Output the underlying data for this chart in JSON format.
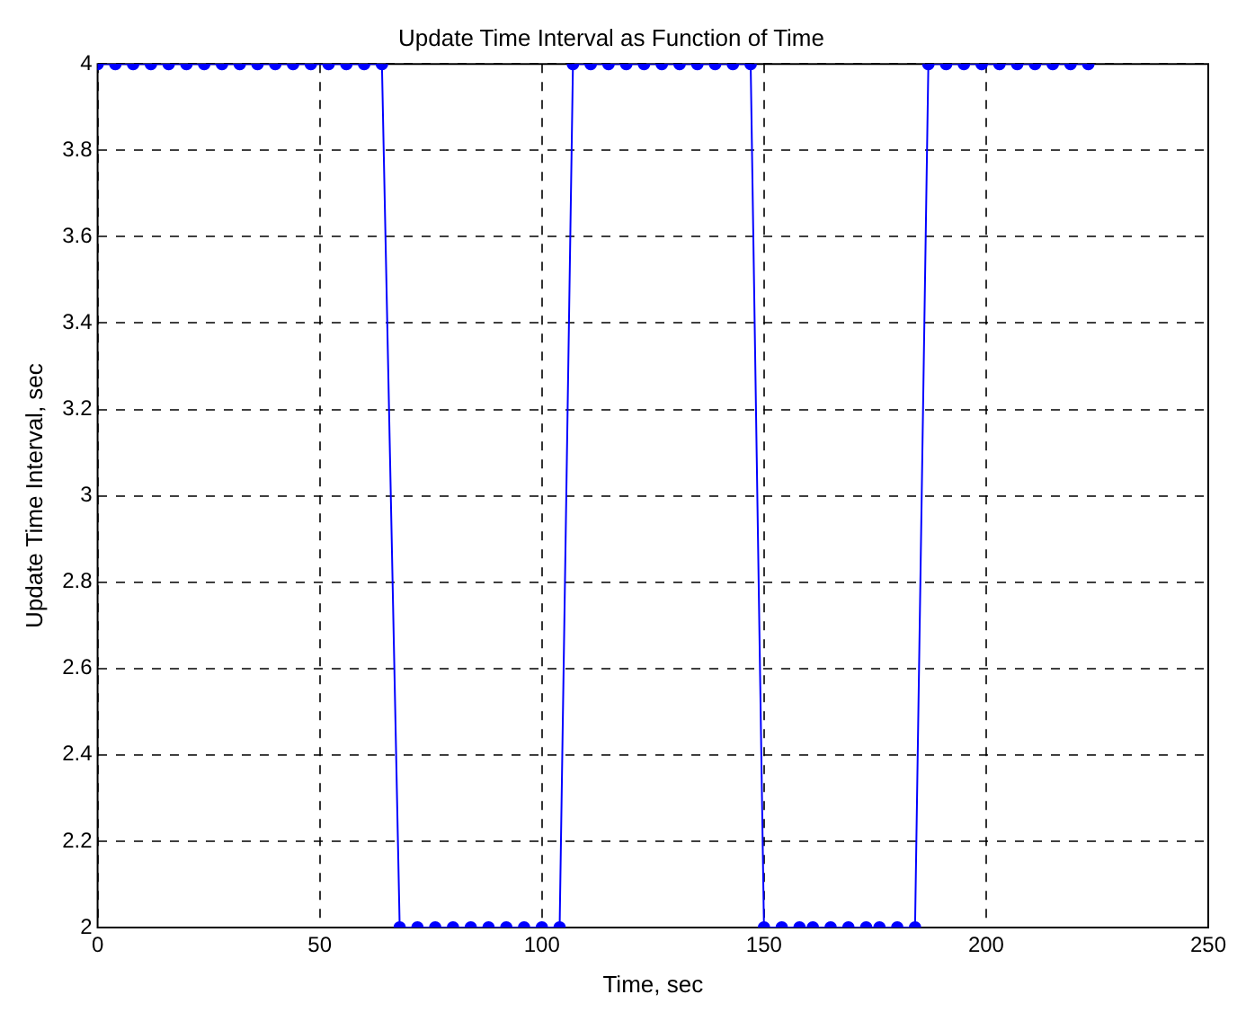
{
  "chart_data": {
    "type": "line",
    "title": "Update Time Interval as Function of Time",
    "xlabel": "Time, sec",
    "ylabel": "Update Time Interval, sec",
    "x": [
      0,
      4,
      8,
      12,
      16,
      20,
      24,
      28,
      32,
      36,
      40,
      44,
      48,
      52,
      56,
      60,
      64,
      68,
      72,
      76,
      80,
      84,
      88,
      92,
      96,
      100,
      104,
      107,
      111,
      115,
      119,
      123,
      127,
      131,
      135,
      139,
      143,
      147,
      150,
      154,
      158,
      161,
      165,
      169,
      173,
      176,
      180,
      184,
      187,
      191,
      195,
      199,
      203,
      207,
      211,
      215,
      219,
      223
    ],
    "series": [
      {
        "color": "#0000ff",
        "values": [
          4,
          4,
          4,
          4,
          4,
          4,
          4,
          4,
          4,
          4,
          4,
          4,
          4,
          4,
          4,
          4,
          4,
          2,
          2,
          2,
          2,
          2,
          2,
          2,
          2,
          2,
          2,
          4,
          4,
          4,
          4,
          4,
          4,
          4,
          4,
          4,
          4,
          4,
          2,
          2,
          2,
          2,
          2,
          2,
          2,
          2,
          2,
          2,
          4,
          4,
          4,
          4,
          4,
          4,
          4,
          4,
          4,
          4
        ]
      }
    ],
    "xlim": [
      0,
      250
    ],
    "xticks": [
      0,
      50,
      100,
      150,
      200,
      250
    ],
    "ylim": [
      2,
      4
    ],
    "yticks": [
      2,
      2.2,
      2.4,
      2.6,
      2.8,
      3,
      3.2,
      3.4,
      3.6,
      3.8,
      4
    ],
    "grid": true,
    "marker": "circle",
    "line_style": "solid"
  }
}
